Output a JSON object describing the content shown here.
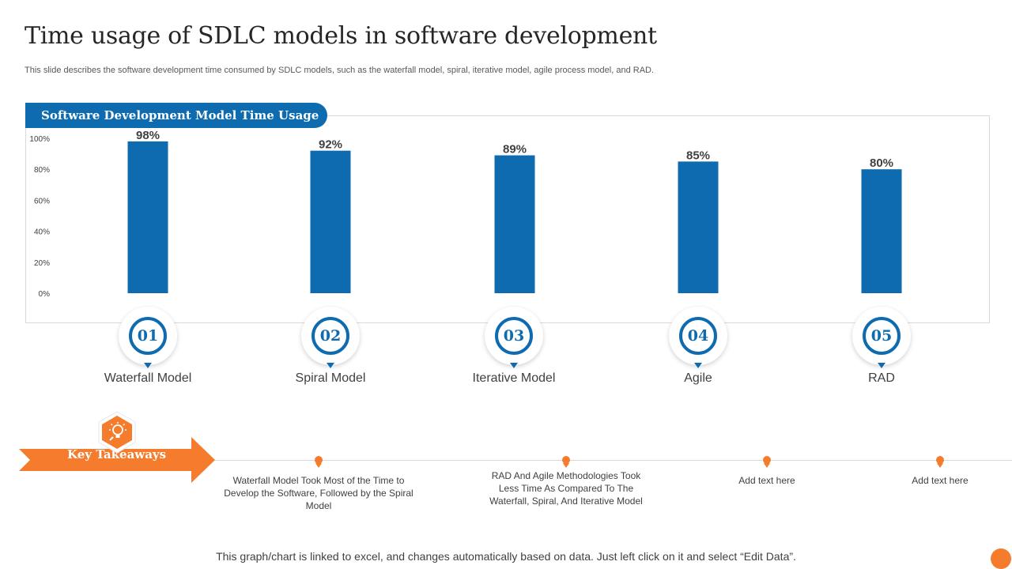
{
  "title": "Time usage of SDLC models in software development",
  "subtitle": "This slide describes the software development time consumed by SDLC models, such as the waterfall model, spiral, iterative model, agile process model, and RAD.",
  "chart_title": "Software Development Model Time Usage",
  "chart_data": {
    "type": "bar",
    "title": "Software Development Model Time Usage",
    "categories": [
      "Waterfall Model",
      "Spiral Model",
      "Iterative Model",
      "Agile",
      "RAD"
    ],
    "values": [
      98,
      92,
      89,
      85,
      80
    ],
    "value_labels": [
      "98%",
      "92%",
      "89%",
      "85%",
      "80%"
    ],
    "ylim": [
      0,
      100
    ],
    "yticks": [
      0,
      20,
      40,
      60,
      80,
      100
    ],
    "ytick_labels": [
      "0%",
      "20%",
      "40%",
      "60%",
      "80%",
      "100%"
    ],
    "xlabel": "",
    "ylabel": "",
    "grid": false,
    "bar_color": "#0E6BB0"
  },
  "steps": [
    {
      "num": "01",
      "label": "Waterfall Model"
    },
    {
      "num": "02",
      "label": "Spiral Model"
    },
    {
      "num": "03",
      "label": "Iterative  Model"
    },
    {
      "num": "04",
      "label": "Agile"
    },
    {
      "num": "05",
      "label": "RAD"
    }
  ],
  "key_takeaways": {
    "label": "Key Takeaways",
    "items": [
      {
        "text": "Waterfall Model Took Most of the Time to Develop the Software, Followed by the Spiral Model"
      },
      {
        "text": "RAD And Agile Methodologies Took Less Time As Compared To The Waterfall, Spiral, And Iterative Model"
      },
      {
        "text": "Add text here"
      },
      {
        "text": "Add text here"
      }
    ]
  },
  "footer_note": "This graph/chart is linked to excel,  and changes automatically based on data. Just left click on it and select “Edit Data”.",
  "colors": {
    "primary": "#0E6BB0",
    "accent": "#F47C2C"
  }
}
